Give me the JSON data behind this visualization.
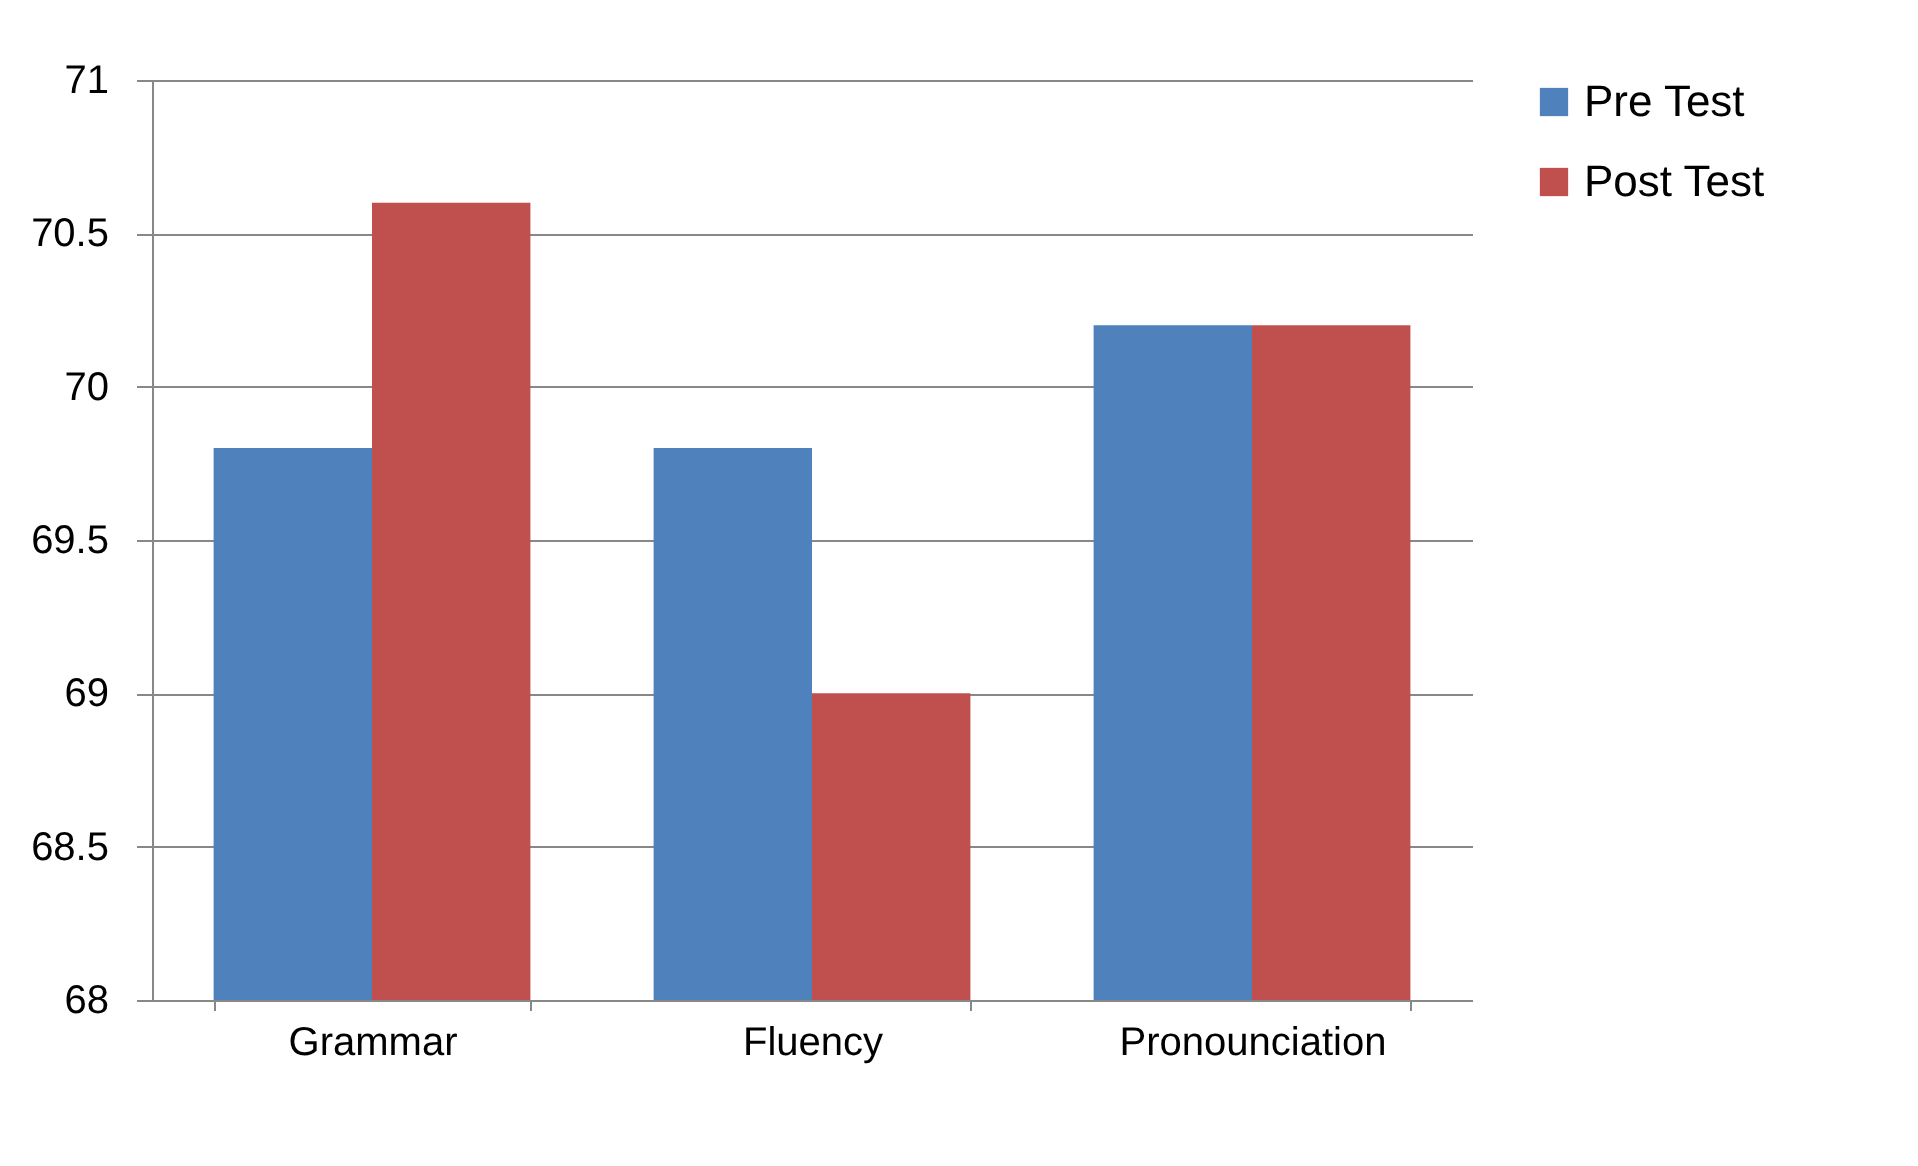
{
  "chart_data": {
    "type": "bar",
    "categories": [
      "Grammar",
      "Fluency",
      "Pronounciation"
    ],
    "series": [
      {
        "name": "Pre Test",
        "color": "#4f81bd",
        "values": [
          69.8,
          69.8,
          70.2
        ]
      },
      {
        "name": "Post Test",
        "color": "#c0504d",
        "values": [
          70.6,
          69.0,
          70.2
        ]
      }
    ],
    "ylim": [
      68,
      71
    ],
    "yticks": [
      68,
      68.5,
      69,
      69.5,
      70,
      70.5,
      71
    ],
    "grid": "y",
    "legend": "right"
  }
}
